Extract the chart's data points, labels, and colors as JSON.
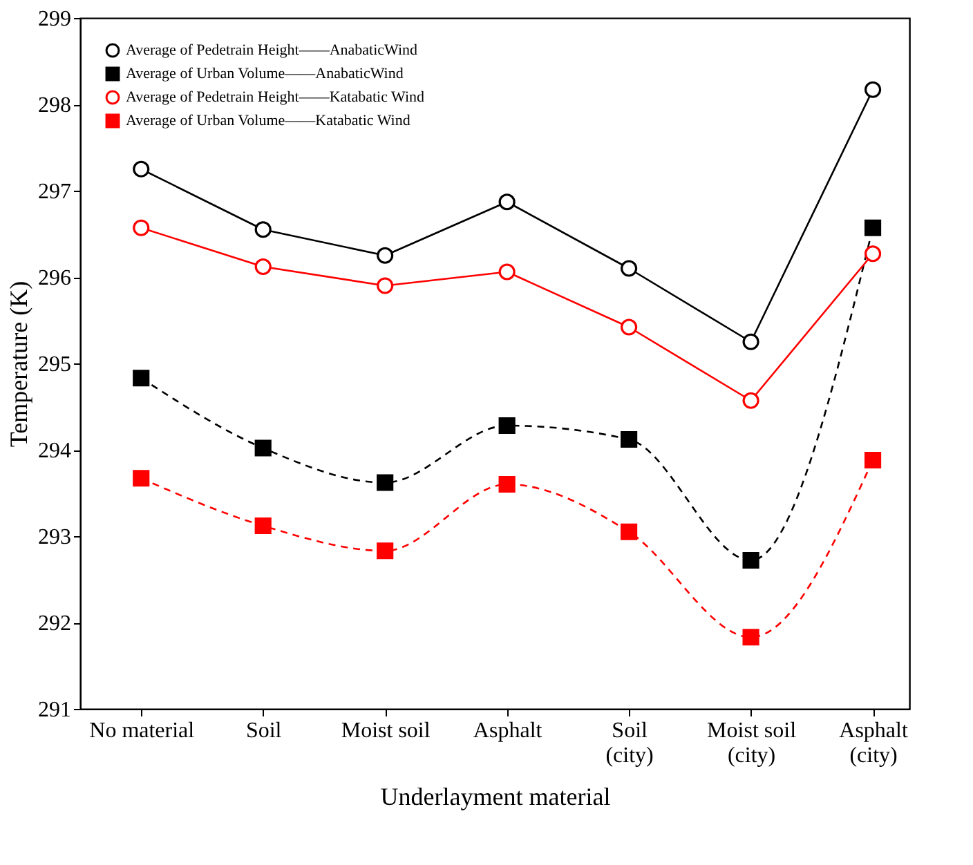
{
  "chart_data": {
    "type": "line",
    "xlabel": "Underlayment material",
    "ylabel": "Temperature (K)",
    "categories": [
      "No material",
      "Soil",
      "Moist soil",
      "Asphalt",
      "Soil\n(city)",
      "Moist soil\n(city)",
      "Asphalt\n(city)"
    ],
    "series": [
      {
        "name": "Average of Pedetrain Height——AnabaticWind",
        "color": "#000000",
        "marker": "circle",
        "line_style": "solid",
        "values": [
          297.25,
          296.55,
          296.25,
          296.87,
          296.1,
          295.25,
          298.17
        ]
      },
      {
        "name": "Average of Urban Volume——AnabaticWind",
        "color": "#000000",
        "marker": "square",
        "line_style": "dashed",
        "values": [
          294.83,
          294.02,
          293.62,
          294.28,
          294.12,
          292.72,
          296.57
        ]
      },
      {
        "name": "Average of Pedetrain Height——Katabatic Wind",
        "color": "#ff0000",
        "marker": "circle",
        "line_style": "solid",
        "values": [
          296.57,
          296.12,
          295.9,
          296.06,
          295.42,
          294.57,
          296.27
        ]
      },
      {
        "name": "Average of Urban Volume——Katabatic  Wind",
        "color": "#ff0000",
        "marker": "square",
        "line_style": "dashed",
        "values": [
          293.67,
          293.12,
          292.83,
          293.6,
          293.05,
          291.83,
          293.88
        ]
      }
    ],
    "ylim": [
      291,
      299
    ],
    "yticks": [
      291,
      292,
      293,
      294,
      295,
      296,
      297,
      298,
      299
    ],
    "grid": false,
    "legend": "top left"
  }
}
